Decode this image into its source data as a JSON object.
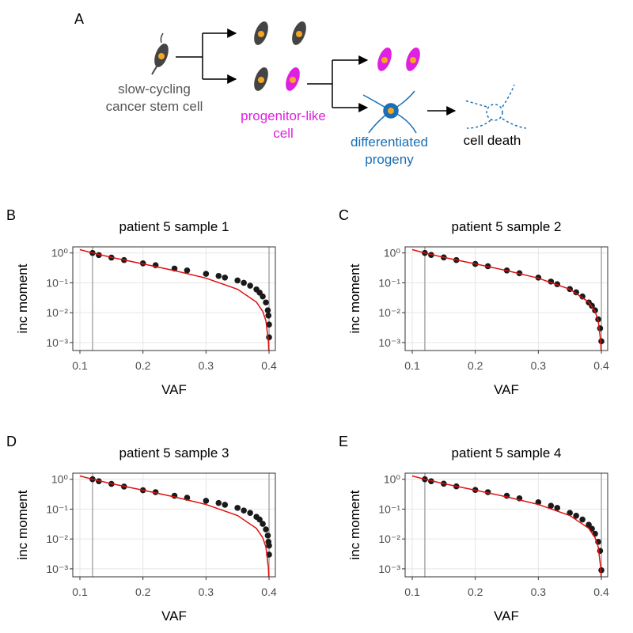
{
  "diagram": {
    "panel_label": "A",
    "stem_cell": [
      "slow-cycling",
      "cancer stem cell"
    ],
    "progenitor": [
      "progenitor-like",
      "cell"
    ],
    "differentiated": [
      "differentiated",
      "progeny"
    ],
    "death": "cell death"
  },
  "chart_data": [
    {
      "type": "scatter",
      "panel_label": "B",
      "title": "patient 5 sample 1",
      "xlabel": "VAF",
      "ylabel": "inc moment",
      "xlim": [
        0.0887,
        0.41
      ],
      "ylim": [
        0.00054,
        1.6
      ],
      "log_y": true,
      "grid": true,
      "xticks": [
        0.1,
        0.2,
        0.3,
        0.4
      ],
      "yticks": [
        {
          "value": 1,
          "label": "10⁰"
        },
        {
          "value": 0.1,
          "label": "10⁻¹"
        },
        {
          "value": 0.01,
          "label": "10⁻²"
        },
        {
          "value": 0.001,
          "label": "10⁻³"
        }
      ],
      "vlines": [
        0.12,
        0.4
      ],
      "series": [
        {
          "mode": "points",
          "color": "#1a1a1a",
          "x": [
            0.12,
            0.13,
            0.15,
            0.17,
            0.2,
            0.22,
            0.25,
            0.27,
            0.3,
            0.32,
            0.33,
            0.35,
            0.36,
            0.37,
            0.38,
            0.385,
            0.39,
            0.395,
            0.398,
            0.399,
            0.4,
            0.4
          ],
          "values": [
            1.0,
            0.85,
            0.7,
            0.58,
            0.45,
            0.39,
            0.3,
            0.26,
            0.2,
            0.17,
            0.15,
            0.12,
            0.1,
            0.08,
            0.06,
            0.047,
            0.035,
            0.022,
            0.012,
            0.008,
            0.004,
            0.0015
          ]
        },
        {
          "mode": "line",
          "color": "#e01010",
          "x": [
            0.1,
            0.12,
            0.15,
            0.2,
            0.25,
            0.3,
            0.35,
            0.38,
            0.39,
            0.395,
            0.399,
            0.3995
          ],
          "values": [
            1.29,
            1.0,
            0.714,
            0.43,
            0.257,
            0.143,
            0.061,
            0.0226,
            0.011,
            0.0054,
            0.00107,
            0.00054
          ]
        }
      ]
    },
    {
      "type": "scatter",
      "panel_label": "C",
      "title": "patient 5 sample 2",
      "xlabel": "VAF",
      "ylabel": "inc moment",
      "xlim": [
        0.0887,
        0.41
      ],
      "ylim": [
        0.00054,
        1.6
      ],
      "log_y": true,
      "grid": true,
      "xticks": [
        0.1,
        0.2,
        0.3,
        0.4
      ],
      "yticks": [
        {
          "value": 1,
          "label": "10⁰"
        },
        {
          "value": 0.1,
          "label": "10⁻¹"
        },
        {
          "value": 0.01,
          "label": "10⁻²"
        },
        {
          "value": 0.001,
          "label": "10⁻³"
        }
      ],
      "vlines": [
        0.12,
        0.4
      ],
      "series": [
        {
          "mode": "points",
          "color": "#1a1a1a",
          "x": [
            0.12,
            0.13,
            0.15,
            0.17,
            0.2,
            0.22,
            0.25,
            0.27,
            0.3,
            0.32,
            0.33,
            0.35,
            0.36,
            0.37,
            0.38,
            0.385,
            0.39,
            0.395,
            0.398,
            0.4
          ],
          "values": [
            1.0,
            0.86,
            0.71,
            0.58,
            0.43,
            0.36,
            0.26,
            0.21,
            0.15,
            0.11,
            0.09,
            0.062,
            0.048,
            0.035,
            0.022,
            0.017,
            0.012,
            0.006,
            0.003,
            0.0011
          ]
        },
        {
          "mode": "line",
          "color": "#e01010",
          "x": [
            0.1,
            0.12,
            0.15,
            0.2,
            0.25,
            0.3,
            0.35,
            0.38,
            0.39,
            0.395,
            0.399,
            0.3995
          ],
          "values": [
            1.29,
            1.0,
            0.714,
            0.43,
            0.257,
            0.143,
            0.061,
            0.0226,
            0.011,
            0.0054,
            0.00107,
            0.00054
          ]
        }
      ]
    },
    {
      "type": "scatter",
      "panel_label": "D",
      "title": "patient 5 sample 3",
      "xlabel": "VAF",
      "ylabel": "inc moment",
      "xlim": [
        0.0887,
        0.41
      ],
      "ylim": [
        0.00054,
        1.6
      ],
      "log_y": true,
      "grid": true,
      "xticks": [
        0.1,
        0.2,
        0.3,
        0.4
      ],
      "yticks": [
        {
          "value": 1,
          "label": "10⁰"
        },
        {
          "value": 0.1,
          "label": "10⁻¹"
        },
        {
          "value": 0.01,
          "label": "10⁻²"
        },
        {
          "value": 0.001,
          "label": "10⁻³"
        }
      ],
      "vlines": [
        0.12,
        0.4
      ],
      "series": [
        {
          "mode": "points",
          "color": "#1a1a1a",
          "x": [
            0.12,
            0.13,
            0.15,
            0.17,
            0.2,
            0.22,
            0.25,
            0.27,
            0.3,
            0.32,
            0.33,
            0.35,
            0.36,
            0.37,
            0.38,
            0.385,
            0.39,
            0.395,
            0.398,
            0.399,
            0.4,
            0.4
          ],
          "values": [
            1.0,
            0.86,
            0.7,
            0.57,
            0.43,
            0.37,
            0.28,
            0.24,
            0.19,
            0.16,
            0.14,
            0.11,
            0.09,
            0.075,
            0.055,
            0.045,
            0.032,
            0.021,
            0.013,
            0.008,
            0.006,
            0.003
          ]
        },
        {
          "mode": "line",
          "color": "#e01010",
          "x": [
            0.1,
            0.12,
            0.15,
            0.2,
            0.25,
            0.3,
            0.35,
            0.38,
            0.39,
            0.395,
            0.399,
            0.3995
          ],
          "values": [
            1.29,
            1.0,
            0.714,
            0.43,
            0.257,
            0.143,
            0.061,
            0.0226,
            0.011,
            0.0054,
            0.00107,
            0.00054
          ]
        }
      ]
    },
    {
      "type": "scatter",
      "panel_label": "E",
      "title": "patient 5 sample 4",
      "xlabel": "VAF",
      "ylabel": "inc moment",
      "xlim": [
        0.0887,
        0.41
      ],
      "ylim": [
        0.00054,
        1.6
      ],
      "log_y": true,
      "grid": true,
      "xticks": [
        0.1,
        0.2,
        0.3,
        0.4
      ],
      "yticks": [
        {
          "value": 1,
          "label": "10⁰"
        },
        {
          "value": 0.1,
          "label": "10⁻¹"
        },
        {
          "value": 0.01,
          "label": "10⁻²"
        },
        {
          "value": 0.001,
          "label": "10⁻³"
        }
      ],
      "vlines": [
        0.12,
        0.4
      ],
      "series": [
        {
          "mode": "points",
          "color": "#1a1a1a",
          "x": [
            0.12,
            0.13,
            0.15,
            0.17,
            0.2,
            0.22,
            0.25,
            0.27,
            0.3,
            0.32,
            0.33,
            0.35,
            0.36,
            0.37,
            0.38,
            0.385,
            0.39,
            0.395,
            0.398,
            0.4
          ],
          "values": [
            1.0,
            0.86,
            0.71,
            0.58,
            0.44,
            0.37,
            0.28,
            0.23,
            0.17,
            0.13,
            0.11,
            0.075,
            0.06,
            0.045,
            0.03,
            0.022,
            0.015,
            0.008,
            0.004,
            0.0009
          ]
        },
        {
          "mode": "line",
          "color": "#e01010",
          "x": [
            0.1,
            0.12,
            0.15,
            0.2,
            0.25,
            0.3,
            0.35,
            0.38,
            0.39,
            0.395,
            0.399,
            0.3995
          ],
          "values": [
            1.29,
            1.0,
            0.714,
            0.43,
            0.257,
            0.143,
            0.061,
            0.0226,
            0.011,
            0.0054,
            0.00107,
            0.00054
          ]
        }
      ]
    }
  ]
}
